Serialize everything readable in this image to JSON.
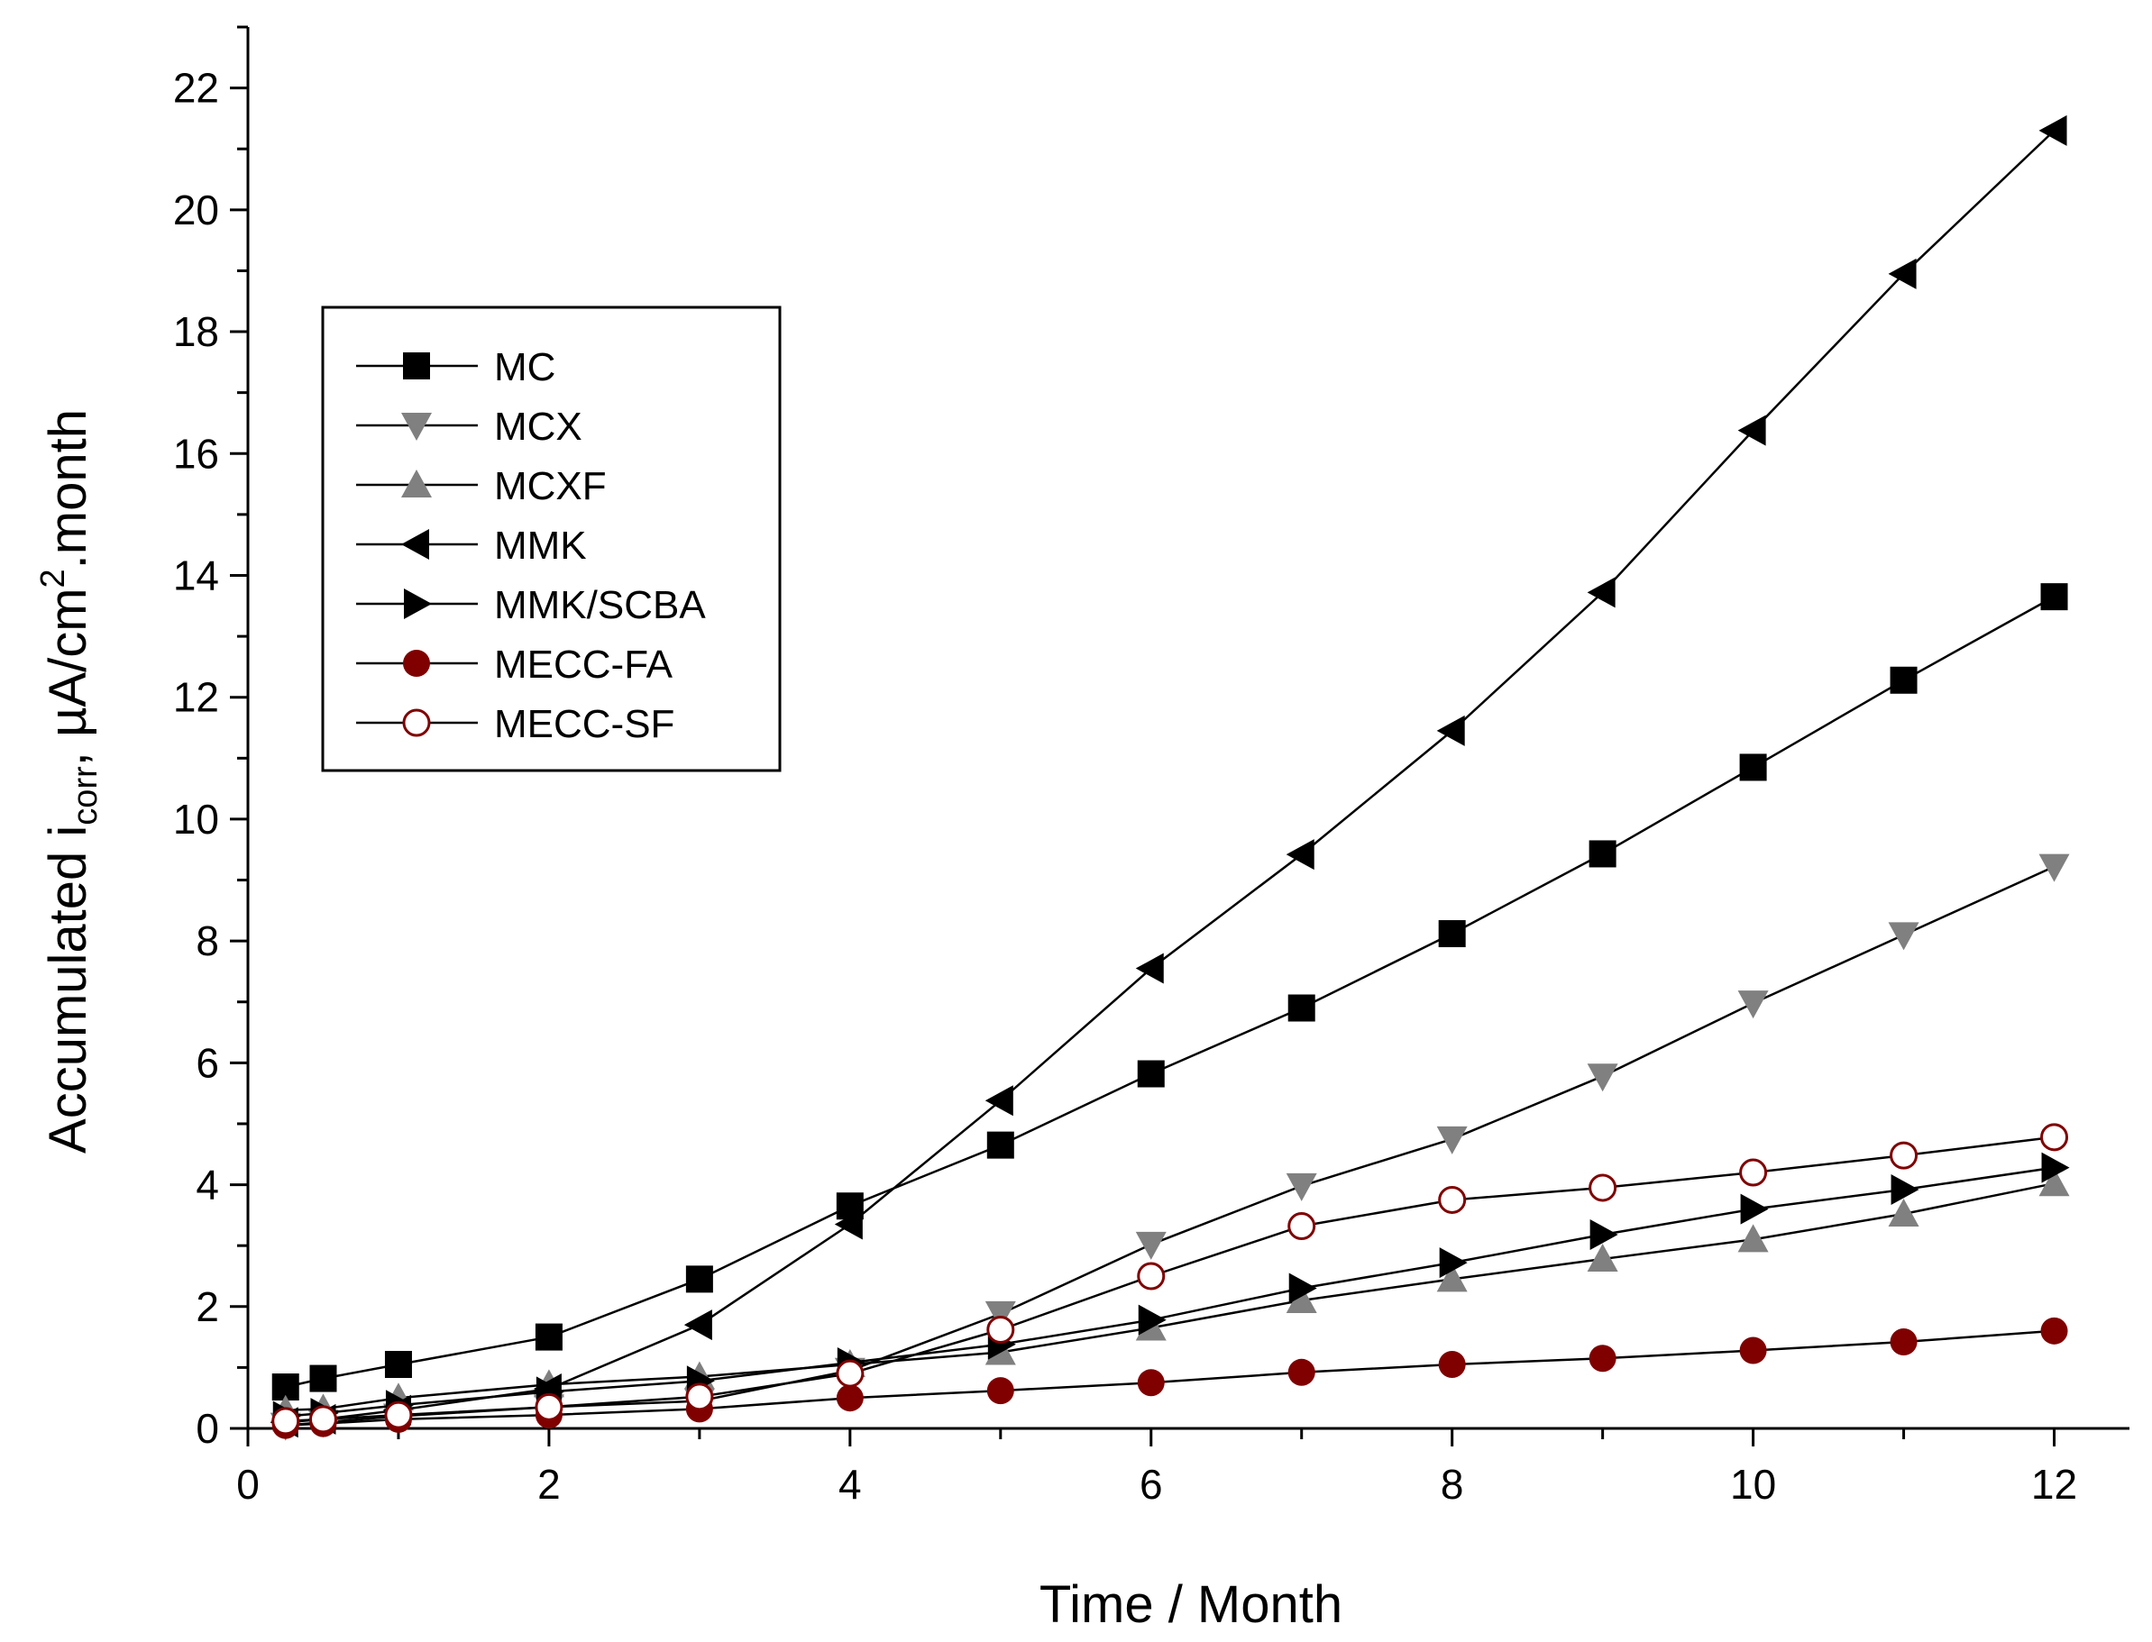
{
  "chart_data": {
    "type": "line",
    "title": "",
    "xlabel": "Time / Month",
    "ylabel": {
      "prefix": "Accumulated i",
      "subscript": "corr",
      "middle": ", µA/cm",
      "superscript": "2",
      "suffix": ".month"
    },
    "xlim": [
      0,
      12.5
    ],
    "ylim": [
      0,
      23
    ],
    "x_ticks": [
      0,
      2,
      4,
      6,
      8,
      10,
      12
    ],
    "y_ticks": [
      0,
      2,
      4,
      6,
      8,
      10,
      12,
      14,
      16,
      18,
      20,
      22
    ],
    "grid": false,
    "legend_position": "upper-left",
    "series": [
      {
        "name": "MC",
        "marker": "square",
        "color": "#000000",
        "x": [
          0.25,
          0.5,
          1,
          2,
          3,
          4,
          5,
          6,
          7,
          8,
          9,
          10,
          11,
          12
        ],
        "y": [
          0.68,
          0.82,
          1.05,
          1.5,
          2.45,
          3.65,
          4.65,
          5.82,
          6.9,
          8.12,
          9.43,
          10.85,
          12.28,
          13.65
        ]
      },
      {
        "name": "MCX",
        "marker": "triangle-down",
        "color": "#808080",
        "x": [
          0.25,
          0.5,
          1,
          2,
          3,
          4,
          5,
          6,
          7,
          8,
          9,
          10,
          11,
          12
        ],
        "y": [
          0.05,
          0.1,
          0.2,
          0.35,
          0.45,
          0.95,
          1.88,
          3.02,
          3.98,
          4.75,
          5.78,
          6.98,
          8.1,
          9.22
        ]
      },
      {
        "name": "MCXF",
        "marker": "triangle-up",
        "color": "#808080",
        "x": [
          0.25,
          0.5,
          1,
          2,
          3,
          4,
          5,
          6,
          7,
          8,
          9,
          10,
          11,
          12
        ],
        "y": [
          0.3,
          0.32,
          0.5,
          0.72,
          0.85,
          1.05,
          1.25,
          1.65,
          2.1,
          2.45,
          2.78,
          3.1,
          3.52,
          4.02
        ]
      },
      {
        "name": "MMK",
        "marker": "triangle-left",
        "color": "#000000",
        "x": [
          0.25,
          0.5,
          1,
          2,
          3,
          4,
          5,
          6,
          7,
          8,
          9,
          10,
          11,
          12
        ],
        "y": [
          0.1,
          0.15,
          0.3,
          0.65,
          1.7,
          3.35,
          5.38,
          7.55,
          9.42,
          11.45,
          13.72,
          16.38,
          18.95,
          21.3
        ]
      },
      {
        "name": "MMK/SCBA",
        "marker": "triangle-right",
        "color": "#000000",
        "x": [
          0.25,
          0.5,
          1,
          2,
          3,
          4,
          5,
          6,
          7,
          8,
          9,
          10,
          11,
          12
        ],
        "y": [
          0.2,
          0.25,
          0.38,
          0.6,
          0.78,
          1.08,
          1.38,
          1.78,
          2.3,
          2.72,
          3.18,
          3.6,
          3.92,
          4.28
        ]
      },
      {
        "name": "MECC-FA",
        "marker": "circle-filled",
        "color": "#800000",
        "x": [
          0.25,
          0.5,
          1,
          2,
          3,
          4,
          5,
          6,
          7,
          8,
          9,
          10,
          11,
          12
        ],
        "y": [
          0.05,
          0.08,
          0.15,
          0.22,
          0.32,
          0.5,
          0.62,
          0.75,
          0.92,
          1.05,
          1.15,
          1.28,
          1.42,
          1.6
        ]
      },
      {
        "name": "MECC-SF",
        "marker": "circle-open",
        "color": "#800000",
        "x": [
          0.25,
          0.5,
          1,
          2,
          3,
          4,
          5,
          6,
          7,
          8,
          9,
          10,
          11,
          12
        ],
        "y": [
          0.12,
          0.15,
          0.22,
          0.35,
          0.52,
          0.9,
          1.62,
          2.5,
          3.32,
          3.75,
          3.95,
          4.2,
          4.48,
          4.78
        ]
      }
    ]
  }
}
